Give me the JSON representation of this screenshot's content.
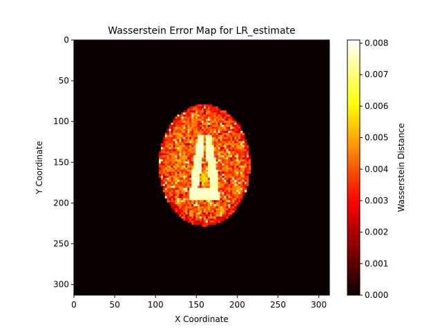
{
  "chart_data": {
    "type": "heatmap",
    "title": "Wasserstein Error Map for LR_estimate",
    "xlabel": "X Coordinate",
    "ylabel": "Y Coordinate",
    "xlim": [
      0,
      313
    ],
    "ylim": [
      313,
      0
    ],
    "x_ticks": [
      0,
      50,
      100,
      150,
      200,
      250,
      300
    ],
    "y_ticks": [
      0,
      50,
      100,
      150,
      200,
      250,
      300
    ],
    "colormap": "hot",
    "colorbar": {
      "label": "Wasserstein Distance",
      "range": [
        0.0,
        0.0081
      ],
      "ticks": [
        "0.000",
        "0.001",
        "0.002",
        "0.003",
        "0.004",
        "0.005",
        "0.006",
        "0.007",
        "0.008"
      ]
    },
    "regions": [
      {
        "name": "background",
        "value": 0.0
      },
      {
        "name": "brain",
        "center": [
          160,
          153
        ],
        "x_range": [
          104,
          216
        ],
        "y_range": [
          79,
          228
        ],
        "value_range": [
          0.002,
          0.006
        ]
      },
      {
        "name": "ventricles",
        "center": [
          160,
          160
        ],
        "x_range": [
          140,
          182
        ],
        "y_range": [
          117,
          197
        ],
        "value_range": [
          0.0065,
          0.008
        ]
      }
    ],
    "grid": false
  }
}
